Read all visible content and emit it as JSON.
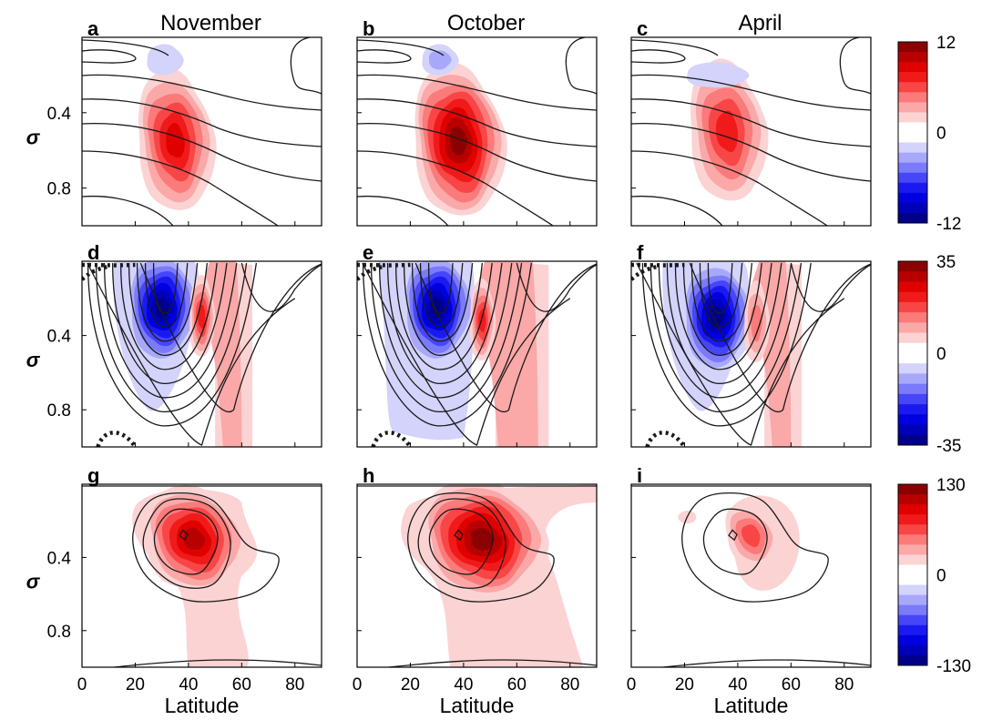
{
  "chart_data": {
    "type": "heatmap",
    "column_titles": [
      "November",
      "October",
      "April"
    ],
    "xlabel": "Latitude",
    "ylabel": "σ",
    "xticks": [
      0,
      20,
      40,
      60,
      80
    ],
    "yticks": [
      "0.4",
      "0.8"
    ],
    "xlim": [
      0,
      90
    ],
    "ylim": [
      0,
      1
    ],
    "colorbars": [
      {
        "row": 0,
        "max": 12,
        "zero": 0,
        "min": -12,
        "labels": [
          "12",
          "0",
          "-12"
        ]
      },
      {
        "row": 1,
        "max": 35,
        "zero": 0,
        "min": -35,
        "labels": [
          "35",
          "0",
          "-35"
        ]
      },
      {
        "row": 2,
        "max": 130,
        "zero": 0,
        "min": -130,
        "labels": [
          "130",
          "0",
          "-130"
        ]
      }
    ],
    "panels": [
      {
        "label": "a",
        "row": 0,
        "col": 0,
        "month": "November",
        "positive_center": [
          35,
          0.55
        ],
        "positive_peak_level": 6,
        "negative_center": [
          31,
          0.12
        ],
        "negative_peak_level": 1
      },
      {
        "label": "b",
        "row": 0,
        "col": 1,
        "month": "October",
        "positive_center": [
          38,
          0.55
        ],
        "positive_peak_level": 8,
        "negative_center": [
          31,
          0.12
        ],
        "negative_peak_level": 2
      },
      {
        "label": "c",
        "row": 0,
        "col": 2,
        "month": "April",
        "positive_center": [
          36,
          0.5
        ],
        "positive_peak_level": 5,
        "negative_center": [
          32,
          0.2
        ],
        "negative_peak_level": 1
      },
      {
        "label": "d",
        "row": 1,
        "col": 0,
        "month": "November",
        "negative_center": [
          30,
          0.25
        ],
        "negative_peak_level": 8,
        "positive_center": [
          45,
          0.3
        ],
        "positive_peak_level": 5
      },
      {
        "label": "e",
        "row": 1,
        "col": 1,
        "month": "October",
        "negative_center": [
          30,
          0.25
        ],
        "negative_peak_level": 8,
        "positive_center": [
          47,
          0.32
        ],
        "positive_peak_level": 5
      },
      {
        "label": "f",
        "row": 1,
        "col": 2,
        "month": "April",
        "negative_center": [
          32,
          0.3
        ],
        "negative_peak_level": 8,
        "positive_center": [
          47,
          0.33
        ],
        "positive_peak_level": 3
      },
      {
        "label": "g",
        "row": 2,
        "col": 0,
        "month": "November",
        "positive_center": [
          42,
          0.3
        ],
        "positive_peak_level": 7
      },
      {
        "label": "h",
        "row": 2,
        "col": 1,
        "month": "October",
        "positive_center": [
          47,
          0.3
        ],
        "positive_peak_level": 8
      },
      {
        "label": "i",
        "row": 2,
        "col": 2,
        "month": "April",
        "positive_center": [
          45,
          0.28
        ],
        "positive_peak_level": 4
      }
    ]
  }
}
